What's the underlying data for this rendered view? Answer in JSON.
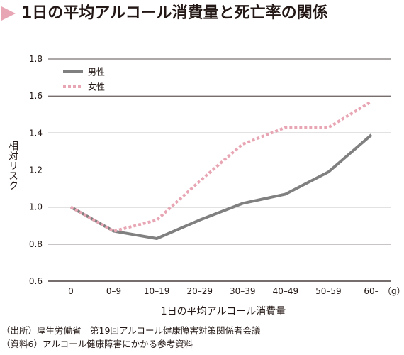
{
  "title": "1日の平均アルコール消費量と死亡率の関係",
  "source_lines": [
    "（出所）厚生労働省　第19回アルコール健康障害対策関係者会議",
    "（資料6）アルコール健康障害にかかる参考資料"
  ],
  "colors": {
    "title_marker": "#e8a6b4",
    "male": "#808080",
    "female": "#e8a6b4",
    "grid": "#231815"
  },
  "chart_data": {
    "type": "line",
    "ylabel": "相対リスク",
    "xlabel": "1日の平均アルコール消費量",
    "x_unit": "（g）",
    "categories": [
      "0",
      "0–9",
      "10–19",
      "20–29",
      "30–39",
      "40–49",
      "50–59",
      "60–"
    ],
    "ylim": [
      0.6,
      1.8
    ],
    "yticks": [
      "0.6",
      "0.8",
      "1.0",
      "1.2",
      "1.4",
      "1.6",
      "1.8"
    ],
    "grid": true,
    "legend_position": "top-left",
    "series": [
      {
        "name": "男性",
        "style": "solid",
        "values": [
          1.0,
          0.87,
          0.83,
          0.93,
          1.02,
          1.07,
          1.19,
          1.39
        ]
      },
      {
        "name": "女性",
        "style": "dotted",
        "values": [
          1.0,
          0.87,
          0.93,
          1.14,
          1.34,
          1.43,
          1.43,
          1.57
        ]
      }
    ]
  }
}
